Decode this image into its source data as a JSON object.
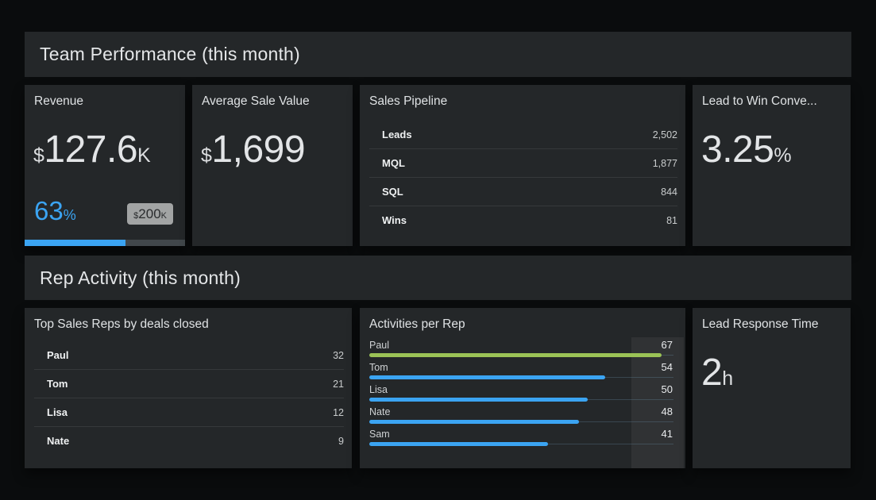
{
  "colors": {
    "accent_blue": "#3ba4f2",
    "accent_green": "#9bc356",
    "card_bg": "#242729",
    "page_bg": "#0a0c0d",
    "badge_bg": "#a2a4a4",
    "progress_track": "#41474b"
  },
  "sections": [
    {
      "title": "Team Performance (this month)"
    },
    {
      "title": "Rep Activity (this month)"
    }
  ],
  "cards": {
    "revenue": {
      "title": "Revenue",
      "prefix": "$",
      "value": "127.6",
      "suffix": "K",
      "percent_value": "63",
      "percent_suffix": "%",
      "goal_prefix": "$",
      "goal_value": "200",
      "goal_suffix": "K",
      "progress_pct": 63
    },
    "avg_sale": {
      "title": "Average Sale Value",
      "prefix": "$",
      "value": "1,699",
      "suffix": ""
    },
    "pipeline": {
      "title": "Sales Pipeline",
      "rows": [
        {
          "label": "Leads",
          "value": "2,502"
        },
        {
          "label": "MQL",
          "value": "1,877"
        },
        {
          "label": "SQL",
          "value": "844"
        },
        {
          "label": "Wins",
          "value": "81"
        }
      ]
    },
    "lead_to_win": {
      "title": "Lead to Win Conve...",
      "prefix": "",
      "value": "3.25",
      "suffix": "%"
    },
    "top_reps": {
      "title": "Top Sales Reps by deals closed",
      "rows": [
        {
          "label": "Paul",
          "value": "32"
        },
        {
          "label": "Tom",
          "value": "21"
        },
        {
          "label": "Lisa",
          "value": "12"
        },
        {
          "label": "Nate",
          "value": "9"
        }
      ]
    },
    "activities": {
      "title": "Activities per Rep",
      "max": 67,
      "rows": [
        {
          "label": "Paul",
          "value": 67,
          "color": "#9bc356"
        },
        {
          "label": "Tom",
          "value": 54,
          "color": "#3ba4f2"
        },
        {
          "label": "Lisa",
          "value": 50,
          "color": "#3ba4f2"
        },
        {
          "label": "Nate",
          "value": 48,
          "color": "#3ba4f2"
        },
        {
          "label": "Sam",
          "value": 41,
          "color": "#3ba4f2"
        }
      ]
    },
    "lead_response": {
      "title": "Lead Response Time",
      "prefix": "",
      "value": "2",
      "suffix": "h"
    }
  },
  "chart_data": [
    {
      "type": "number",
      "title": "Revenue",
      "value": 127600,
      "display": "$127.6K",
      "progress_pct": 63,
      "goal_display": "$200K"
    },
    {
      "type": "number",
      "title": "Average Sale Value",
      "value": 1699,
      "display": "$1,699"
    },
    {
      "type": "table",
      "title": "Sales Pipeline",
      "categories": [
        "Leads",
        "MQL",
        "SQL",
        "Wins"
      ],
      "values": [
        2502,
        1877,
        844,
        81
      ]
    },
    {
      "type": "number",
      "title": "Lead to Win Conve...",
      "value": 3.25,
      "display": "3.25%"
    },
    {
      "type": "table",
      "title": "Top Sales Reps by deals closed",
      "categories": [
        "Paul",
        "Tom",
        "Lisa",
        "Nate"
      ],
      "values": [
        32,
        21,
        12,
        9
      ]
    },
    {
      "type": "bar",
      "title": "Activities per Rep",
      "orientation": "horizontal",
      "categories": [
        "Paul",
        "Tom",
        "Lisa",
        "Nate",
        "Sam"
      ],
      "values": [
        67,
        54,
        50,
        48,
        41
      ],
      "xlim": [
        0,
        67
      ],
      "bar_colors": [
        "#9bc356",
        "#3ba4f2",
        "#3ba4f2",
        "#3ba4f2",
        "#3ba4f2"
      ],
      "grid": false,
      "legend": false
    },
    {
      "type": "number",
      "title": "Lead Response Time",
      "value": 2,
      "display": "2h"
    }
  ]
}
